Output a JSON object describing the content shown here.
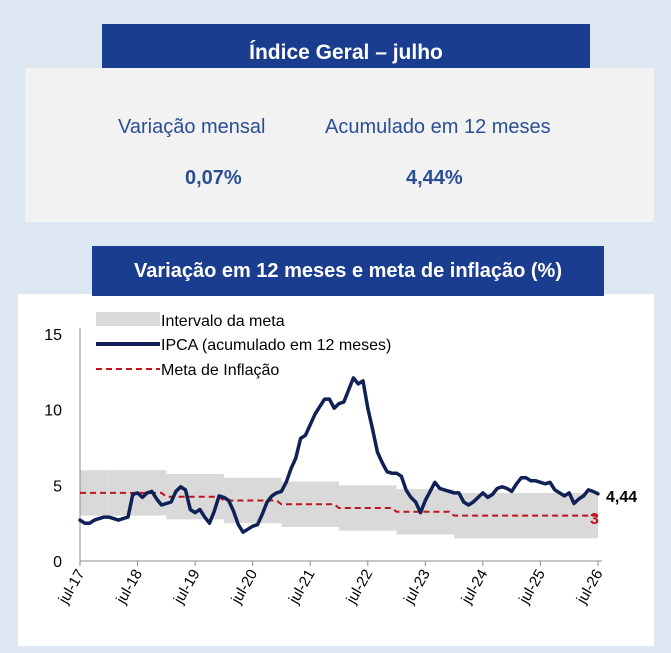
{
  "header": {
    "title": "Índice Geral – julho",
    "monthly_label": "Variação mensal",
    "monthly_value": "0,07%",
    "annual_label": "Acumulado em 12 meses",
    "annual_value": "4,44%"
  },
  "chart_title": "Variação em 12 meses e meta de inflação (%)",
  "colors": {
    "banner": "#1a3d8f",
    "ipca_line": "#0f2156",
    "target_line": "#c0141c",
    "band": "#d9d9d9",
    "stat_text": "#2a4e95"
  },
  "chart_data": {
    "type": "line",
    "x_start": "jul-17",
    "x_end": "jul-26",
    "ylim": [
      0,
      15
    ],
    "yticks": [
      "0",
      "5",
      "10",
      "15"
    ],
    "xticks": [
      "jul-17",
      "jul-18",
      "jul-19",
      "jul-20",
      "jul-21",
      "jul-22",
      "jul-23",
      "jul-24",
      "jul-25",
      "jul-26"
    ],
    "legend": [
      "Intervalo da meta",
      "IPCA (acumulado em 12 meses)",
      "Meta de Inflação"
    ],
    "legend_position": "top-left",
    "grid": false,
    "end_labels": {
      "ipca": "4,44",
      "target": "3"
    },
    "series": [
      {
        "name": "IPCA (acumulado em 12 meses)",
        "points": [
          [
            "jul-17",
            2.7
          ],
          [
            "aug-17",
            2.5
          ],
          [
            "sep-17",
            2.5
          ],
          [
            "oct-17",
            2.7
          ],
          [
            "nov-17",
            2.8
          ],
          [
            "dec-17",
            2.9
          ],
          [
            "jan-18",
            2.9
          ],
          [
            "feb-18",
            2.8
          ],
          [
            "mar-18",
            2.7
          ],
          [
            "apr-18",
            2.8
          ],
          [
            "may-18",
            2.9
          ],
          [
            "jun-18",
            4.4
          ],
          [
            "jul-18",
            4.5
          ],
          [
            "aug-18",
            4.2
          ],
          [
            "sep-18",
            4.5
          ],
          [
            "oct-18",
            4.6
          ],
          [
            "nov-18",
            4.1
          ],
          [
            "dec-18",
            3.7
          ],
          [
            "jan-19",
            3.8
          ],
          [
            "feb-19",
            3.9
          ],
          [
            "mar-19",
            4.6
          ],
          [
            "apr-19",
            4.9
          ],
          [
            "may-19",
            4.7
          ],
          [
            "jun-19",
            3.4
          ],
          [
            "jul-19",
            3.2
          ],
          [
            "aug-19",
            3.4
          ],
          [
            "sep-19",
            2.9
          ],
          [
            "oct-19",
            2.5
          ],
          [
            "nov-19",
            3.3
          ],
          [
            "dec-19",
            4.3
          ],
          [
            "jan-20",
            4.2
          ],
          [
            "feb-20",
            4.0
          ],
          [
            "mar-20",
            3.3
          ],
          [
            "apr-20",
            2.4
          ],
          [
            "may-20",
            1.9
          ],
          [
            "jun-20",
            2.1
          ],
          [
            "jul-20",
            2.3
          ],
          [
            "aug-20",
            2.4
          ],
          [
            "sep-20",
            3.1
          ],
          [
            "oct-20",
            3.9
          ],
          [
            "nov-20",
            4.3
          ],
          [
            "dec-20",
            4.5
          ],
          [
            "jan-21",
            4.6
          ],
          [
            "feb-21",
            5.2
          ],
          [
            "mar-21",
            6.1
          ],
          [
            "apr-21",
            6.8
          ],
          [
            "may-21",
            8.1
          ],
          [
            "jun-21",
            8.3
          ],
          [
            "jul-21",
            9.0
          ],
          [
            "aug-21",
            9.7
          ],
          [
            "sep-21",
            10.2
          ],
          [
            "oct-21",
            10.7
          ],
          [
            "nov-21",
            10.7
          ],
          [
            "dec-21",
            10.1
          ],
          [
            "jan-22",
            10.4
          ],
          [
            "feb-22",
            10.5
          ],
          [
            "mar-22",
            11.3
          ],
          [
            "apr-22",
            12.1
          ],
          [
            "may-22",
            11.7
          ],
          [
            "jun-22",
            11.9
          ],
          [
            "jul-22",
            10.1
          ],
          [
            "aug-22",
            8.7
          ],
          [
            "sep-22",
            7.2
          ],
          [
            "oct-22",
            6.5
          ],
          [
            "nov-22",
            5.9
          ],
          [
            "dec-22",
            5.8
          ],
          [
            "jan-23",
            5.8
          ],
          [
            "feb-23",
            5.6
          ],
          [
            "mar-23",
            4.7
          ],
          [
            "apr-23",
            4.2
          ],
          [
            "may-23",
            3.9
          ],
          [
            "jun-23",
            3.2
          ],
          [
            "jul-23",
            4.0
          ],
          [
            "aug-23",
            4.6
          ],
          [
            "sep-23",
            5.2
          ],
          [
            "oct-23",
            4.8
          ],
          [
            "nov-23",
            4.7
          ],
          [
            "dec-23",
            4.6
          ],
          [
            "jan-24",
            4.5
          ],
          [
            "feb-24",
            4.5
          ],
          [
            "mar-24",
            3.9
          ],
          [
            "apr-24",
            3.7
          ],
          [
            "may-24",
            3.9
          ],
          [
            "jun-24",
            4.2
          ],
          [
            "jul-24",
            4.5
          ],
          [
            "aug-24",
            4.2
          ],
          [
            "sep-24",
            4.4
          ],
          [
            "oct-24",
            4.8
          ],
          [
            "nov-24",
            4.9
          ],
          [
            "dec-24",
            4.8
          ],
          [
            "jan-25",
            4.6
          ],
          [
            "feb-25",
            5.1
          ],
          [
            "mar-25",
            5.5
          ],
          [
            "apr-25",
            5.5
          ],
          [
            "may-25",
            5.3
          ],
          [
            "jun-25",
            5.3
          ],
          [
            "jul-25",
            5.2
          ],
          [
            "aug-25",
            5.1
          ],
          [
            "sep-25",
            5.2
          ],
          [
            "oct-25",
            4.7
          ],
          [
            "nov-25",
            4.5
          ],
          [
            "dec-25",
            4.3
          ],
          [
            "jan-26",
            4.5
          ],
          [
            "feb-26",
            3.8
          ],
          [
            "mar-26",
            4.1
          ],
          [
            "apr-26",
            4.3
          ],
          [
            "may-26",
            4.7
          ],
          [
            "jun-26",
            4.6
          ],
          [
            "jul-26",
            4.44
          ]
        ]
      },
      {
        "name": "Meta de Inflação",
        "points": [
          [
            "jul-17",
            4.5
          ],
          [
            "dec-17",
            4.5
          ],
          [
            "jan-18",
            4.5
          ],
          [
            "dec-18",
            4.5
          ],
          [
            "jan-19",
            4.25
          ],
          [
            "dec-19",
            4.25
          ],
          [
            "jan-20",
            4.0
          ],
          [
            "dec-20",
            4.0
          ],
          [
            "jan-21",
            3.75
          ],
          [
            "dec-21",
            3.75
          ],
          [
            "jan-22",
            3.5
          ],
          [
            "dec-22",
            3.5
          ],
          [
            "jan-23",
            3.25
          ],
          [
            "dec-23",
            3.25
          ],
          [
            "jan-24",
            3.0
          ],
          [
            "jul-26",
            3.0
          ]
        ]
      }
    ],
    "band": {
      "name": "Intervalo da meta",
      "segments": [
        {
          "from": "jul-17",
          "to": "dec-17",
          "low": 3.0,
          "high": 6.0
        },
        {
          "from": "jan-18",
          "to": "dec-18",
          "low": 3.0,
          "high": 6.0
        },
        {
          "from": "jan-19",
          "to": "dec-19",
          "low": 2.75,
          "high": 5.75
        },
        {
          "from": "jan-20",
          "to": "dec-20",
          "low": 2.5,
          "high": 5.5
        },
        {
          "from": "jan-21",
          "to": "dec-21",
          "low": 2.25,
          "high": 5.25
        },
        {
          "from": "jan-22",
          "to": "dec-22",
          "low": 2.0,
          "high": 5.0
        },
        {
          "from": "jan-23",
          "to": "dec-23",
          "low": 1.75,
          "high": 4.75
        },
        {
          "from": "jan-24",
          "to": "jul-26",
          "low": 1.5,
          "high": 4.5
        }
      ]
    }
  }
}
